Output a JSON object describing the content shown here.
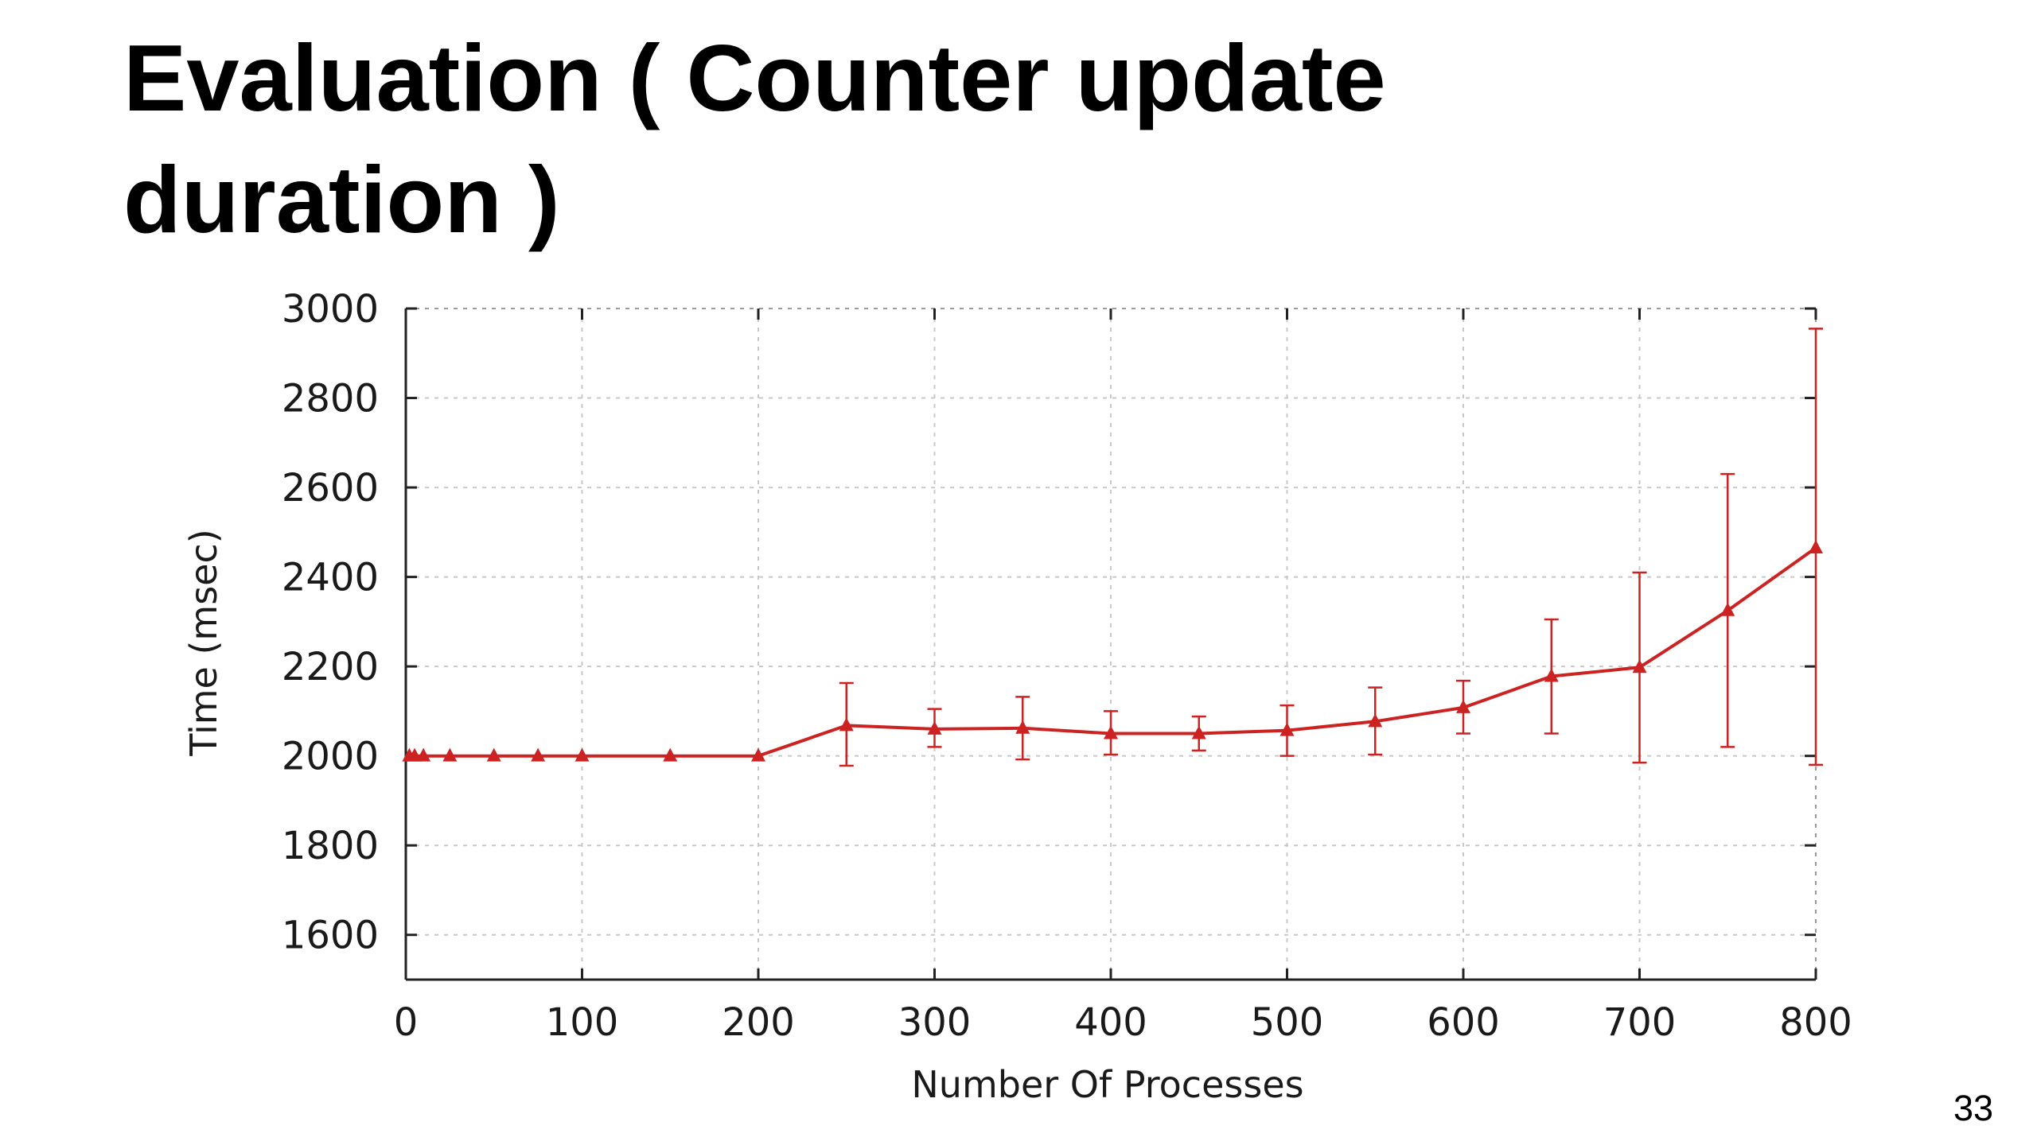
{
  "slide": {
    "title": "Evaluation ( Counter update duration )",
    "page_number": "33"
  },
  "colors": {
    "series": "#cc2222",
    "axis": "#222222",
    "grid": "#c8c8c8"
  },
  "chart_data": {
    "type": "line",
    "title": "",
    "xlabel": "Number Of Processes",
    "ylabel": "Time (msec)",
    "xlim": [
      0,
      800
    ],
    "ylim": [
      1500,
      3000
    ],
    "xticks": [
      0,
      100,
      200,
      300,
      400,
      500,
      600,
      700,
      800
    ],
    "yticks": [
      1600,
      1800,
      2000,
      2200,
      2400,
      2600,
      2800,
      3000
    ],
    "grid": true,
    "legend": "none",
    "error_bars": true,
    "series": [
      {
        "x": [
          2,
          5,
          10,
          25,
          50,
          75,
          100,
          150,
          200,
          250,
          300,
          350,
          400,
          450,
          500,
          550,
          600,
          650,
          700,
          750,
          800
        ],
        "y": [
          2000,
          2000,
          2000,
          2000,
          2000,
          2000,
          2000,
          2000,
          2000,
          2068,
          2060,
          2062,
          2050,
          2050,
          2057,
          2077,
          2108,
          2178,
          2198,
          2325,
          2465
        ],
        "y_err_low": [
          2000,
          2000,
          2000,
          2000,
          2000,
          2000,
          2000,
          2000,
          2000,
          1978,
          2020,
          1992,
          2003,
          2012,
          2000,
          2003,
          2050,
          2050,
          1985,
          2020,
          1980
        ],
        "y_err_high": [
          2000,
          2000,
          2000,
          2000,
          2000,
          2000,
          2000,
          2000,
          2000,
          2163,
          2105,
          2132,
          2100,
          2088,
          2113,
          2153,
          2168,
          2305,
          2410,
          2630,
          2955
        ]
      }
    ]
  }
}
